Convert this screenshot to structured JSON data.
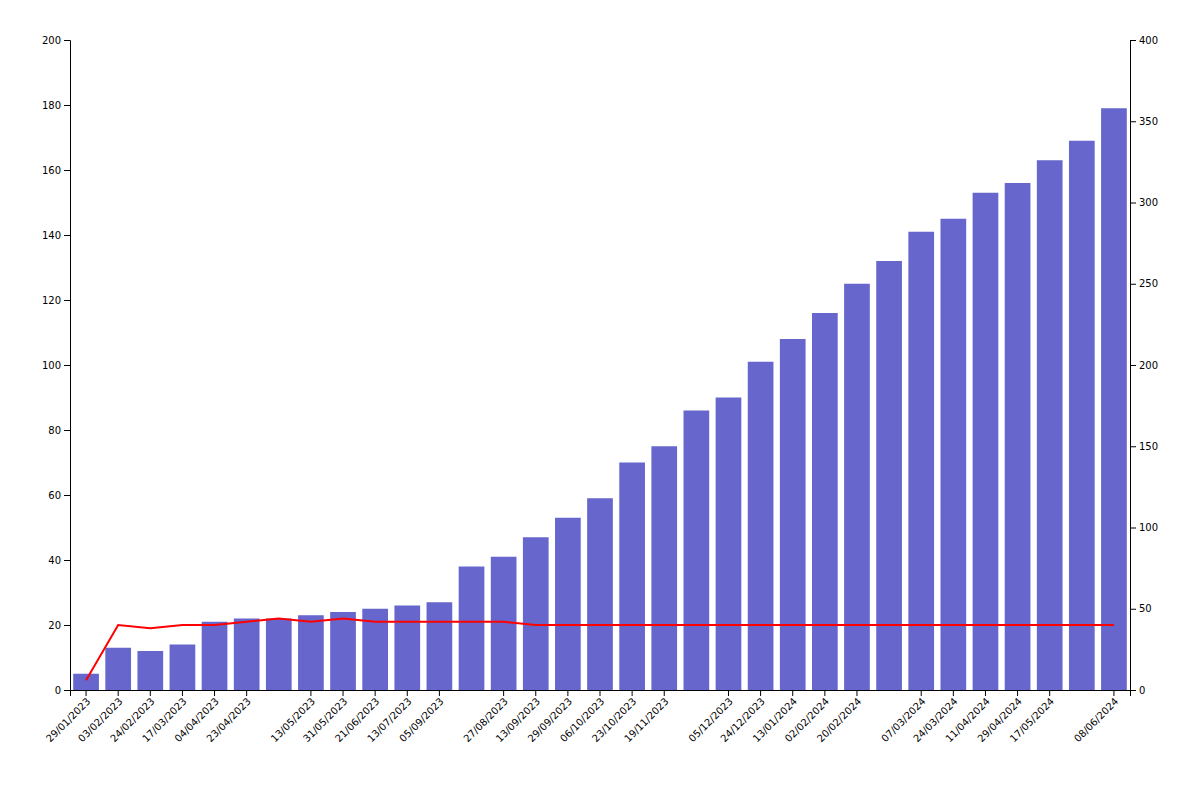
{
  "chart_data": {
    "type": "bar",
    "categories": [
      "29/01/2023",
      "03/02/2023",
      "24/02/2023",
      "17/03/2023",
      "04/04/2023",
      "23/04/2023",
      null,
      "13/05/2023",
      "31/05/2023",
      "21/06/2023",
      "13/07/2023",
      "05/09/2023",
      null,
      "27/08/2023",
      "13/09/2023",
      "29/09/2023",
      "06/10/2023",
      "23/10/2023",
      "19/11/2023",
      null,
      "05/12/2023",
      "24/12/2023",
      "13/01/2024",
      "02/02/2024",
      "20/02/2024",
      null,
      "07/03/2024",
      "24/03/2024",
      "11/04/2024",
      "29/04/2024",
      "17/05/2024",
      null,
      "08/06/2024"
    ],
    "series": [
      {
        "type": "bar",
        "color": "#6666cc",
        "values": [
          5,
          13,
          12,
          14,
          21,
          22,
          22,
          23,
          24,
          25,
          26,
          27,
          38,
          41,
          47,
          53,
          59,
          70,
          75,
          86,
          90,
          101,
          108,
          116,
          125,
          132,
          141,
          145,
          153,
          156,
          163,
          169,
          179
        ]
      },
      {
        "type": "line",
        "color": "#ff0000",
        "values": [
          3,
          20,
          19,
          20,
          20,
          21,
          22,
          21,
          22,
          21,
          21,
          21,
          21,
          21,
          20,
          20,
          20,
          20,
          20,
          20,
          20,
          20,
          20,
          20,
          20,
          20,
          20,
          20,
          20,
          20,
          20,
          20,
          20
        ]
      }
    ],
    "ylim": [
      0,
      200
    ],
    "yticks": [
      0,
      20,
      40,
      60,
      80,
      100,
      120,
      140,
      160,
      180,
      200
    ],
    "y2lim": [
      0,
      400
    ],
    "y2ticks": [
      0,
      50,
      100,
      150,
      200,
      250,
      300,
      350,
      400
    ],
    "grid": false
  }
}
